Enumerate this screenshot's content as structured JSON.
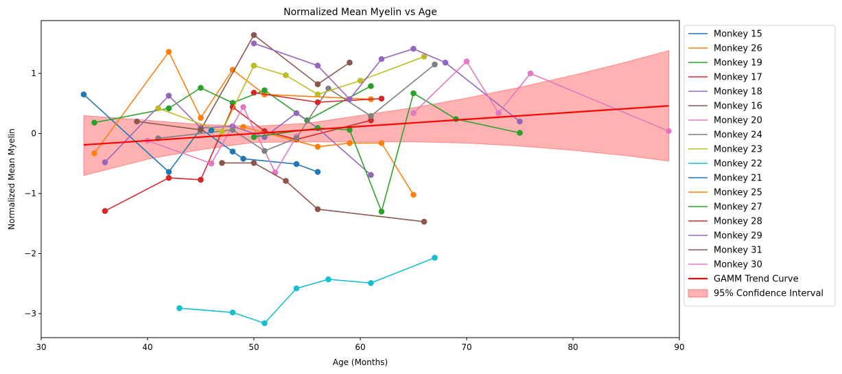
{
  "chart_data": {
    "type": "line",
    "title": "Normalized Mean Myelin vs Age",
    "xlabel": "Age (Months)",
    "ylabel": "Normalized Mean Myelin",
    "xlim": [
      30,
      90
    ],
    "ylim": [
      -3.4,
      1.88
    ],
    "xticks": [
      30,
      40,
      50,
      60,
      70,
      80,
      90
    ],
    "yticks": [
      -3,
      -2,
      -1,
      0,
      1
    ],
    "legend_position": "outside-right",
    "grid": false,
    "series": [
      {
        "name": "Monkey 15",
        "color": "#1f77b4",
        "points": [
          [
            34,
            0.65
          ],
          [
            42,
            -0.64
          ],
          [
            45,
            0.08
          ],
          [
            48,
            -0.3
          ],
          [
            49,
            -0.42
          ],
          [
            54,
            -0.51
          ],
          [
            56,
            -0.64
          ]
        ]
      },
      {
        "name": "Monkey 26",
        "color": "#ff7f0e",
        "points": [
          [
            35,
            -0.33
          ],
          [
            42,
            1.36
          ],
          [
            45,
            0.26
          ],
          [
            48,
            1.06
          ],
          [
            51,
            0.65
          ],
          [
            61,
            0.57
          ]
        ]
      },
      {
        "name": "Monkey 19",
        "color": "#2ca02c",
        "points": [
          [
            35,
            0.18
          ],
          [
            42,
            0.42
          ],
          [
            45,
            0.76
          ],
          [
            48,
            0.51
          ],
          [
            51,
            0.72
          ],
          [
            55,
            0.22
          ],
          [
            61,
            0.79
          ]
        ]
      },
      {
        "name": "Monkey 17",
        "color": "#d62728",
        "points": [
          [
            36,
            -1.29
          ],
          [
            42,
            -0.74
          ],
          [
            45,
            -0.77
          ],
          [
            48,
            0.44
          ],
          [
            51,
            0.04
          ],
          [
            54,
            -0.1
          ],
          [
            61,
            0.22
          ]
        ]
      },
      {
        "name": "Monkey 18",
        "color": "#9467bd",
        "points": [
          [
            36,
            -0.48
          ],
          [
            42,
            0.63
          ],
          [
            45,
            0.09
          ],
          [
            48,
            0.12
          ],
          [
            51,
            -0.06
          ],
          [
            54,
            0.34
          ],
          [
            56,
            0.09
          ],
          [
            61,
            -0.69
          ]
        ]
      },
      {
        "name": "Monkey 16",
        "color": "#8c564b",
        "points": [
          [
            39,
            0.2
          ],
          [
            45,
            0.06
          ],
          [
            50,
            1.64
          ],
          [
            56,
            0.82
          ],
          [
            59,
            1.18
          ]
        ]
      },
      {
        "name": "Monkey 20",
        "color": "#e377c2",
        "points": [
          [
            40,
            -0.12
          ],
          [
            46,
            -0.5
          ],
          [
            49,
            0.44
          ],
          [
            52,
            -0.65
          ],
          [
            54,
            -0.05
          ]
        ]
      },
      {
        "name": "Monkey 24",
        "color": "#7f7f7f",
        "points": [
          [
            41,
            -0.08
          ],
          [
            48,
            0.06
          ],
          [
            51,
            -0.29
          ],
          [
            54,
            -0.08
          ],
          [
            57,
            0.75
          ],
          [
            61,
            0.29
          ],
          [
            67,
            1.15
          ]
        ]
      },
      {
        "name": "Monkey 23",
        "color": "#bcbd22",
        "points": [
          [
            41,
            0.42
          ],
          [
            47,
            0.03
          ],
          [
            50,
            1.13
          ],
          [
            53,
            0.97
          ],
          [
            56,
            0.65
          ],
          [
            60,
            0.88
          ],
          [
            66,
            1.28
          ]
        ]
      },
      {
        "name": "Monkey 22",
        "color": "#17becf",
        "points": [
          [
            43,
            -2.91
          ],
          [
            48,
            -2.98
          ],
          [
            51,
            -3.16
          ],
          [
            54,
            -2.58
          ],
          [
            57,
            -2.43
          ],
          [
            61,
            -2.49
          ],
          [
            67,
            -2.07
          ]
        ]
      },
      {
        "name": "Monkey 21",
        "color": "#1f77b4",
        "points": [
          [
            46,
            0.05
          ]
        ]
      },
      {
        "name": "Monkey 25",
        "color": "#ff7f0e",
        "points": [
          [
            49,
            0.11
          ],
          [
            56,
            -0.22
          ],
          [
            59,
            -0.16
          ],
          [
            62,
            -0.16
          ],
          [
            65,
            -1.02
          ]
        ]
      },
      {
        "name": "Monkey 27",
        "color": "#2ca02c",
        "points": [
          [
            50,
            -0.06
          ],
          [
            56,
            0.09
          ],
          [
            59,
            0.06
          ],
          [
            62,
            -1.3
          ],
          [
            65,
            0.67
          ],
          [
            69,
            0.24
          ],
          [
            75,
            0.01
          ]
        ]
      },
      {
        "name": "Monkey 28",
        "color": "#d62728",
        "points": [
          [
            50,
            0.68
          ],
          [
            56,
            0.52
          ],
          [
            62,
            0.58
          ]
        ]
      },
      {
        "name": "Monkey 29",
        "color": "#9467bd",
        "points": [
          [
            50,
            1.5
          ],
          [
            56,
            1.13
          ],
          [
            59,
            0.57
          ],
          [
            62,
            1.24
          ],
          [
            65,
            1.41
          ],
          [
            68,
            1.18
          ],
          [
            75,
            0.2
          ]
        ]
      },
      {
        "name": "Monkey 31",
        "color": "#8c564b",
        "points": [
          [
            47,
            -0.49
          ],
          [
            50,
            -0.49
          ],
          [
            53,
            -0.79
          ],
          [
            56,
            -1.26
          ],
          [
            66,
            -1.47
          ]
        ]
      },
      {
        "name": "Monkey 30",
        "color": "#e377c2",
        "points": [
          [
            65,
            0.34
          ],
          [
            70,
            1.2
          ],
          [
            73,
            0.34
          ],
          [
            76,
            1.0
          ],
          [
            89,
            0.04
          ]
        ]
      }
    ],
    "trend": {
      "name": "GAMM Trend Curve",
      "color": "#ff0000",
      "x": [
        34,
        89
      ],
      "y": [
        -0.19,
        0.46
      ]
    },
    "confidence_interval": {
      "name": "95% Confidence Interval",
      "color": "#ff0000",
      "x": [
        34,
        40,
        45,
        50,
        55,
        60,
        65,
        70,
        75,
        80,
        85,
        89
      ],
      "lower": [
        -0.7,
        -0.43,
        -0.27,
        -0.15,
        -0.14,
        -0.14,
        -0.14,
        -0.16,
        -0.21,
        -0.28,
        -0.37,
        -0.46
      ],
      "upper": [
        0.3,
        0.22,
        0.15,
        0.12,
        0.17,
        0.3,
        0.43,
        0.59,
        0.77,
        0.97,
        1.19,
        1.38
      ]
    }
  }
}
